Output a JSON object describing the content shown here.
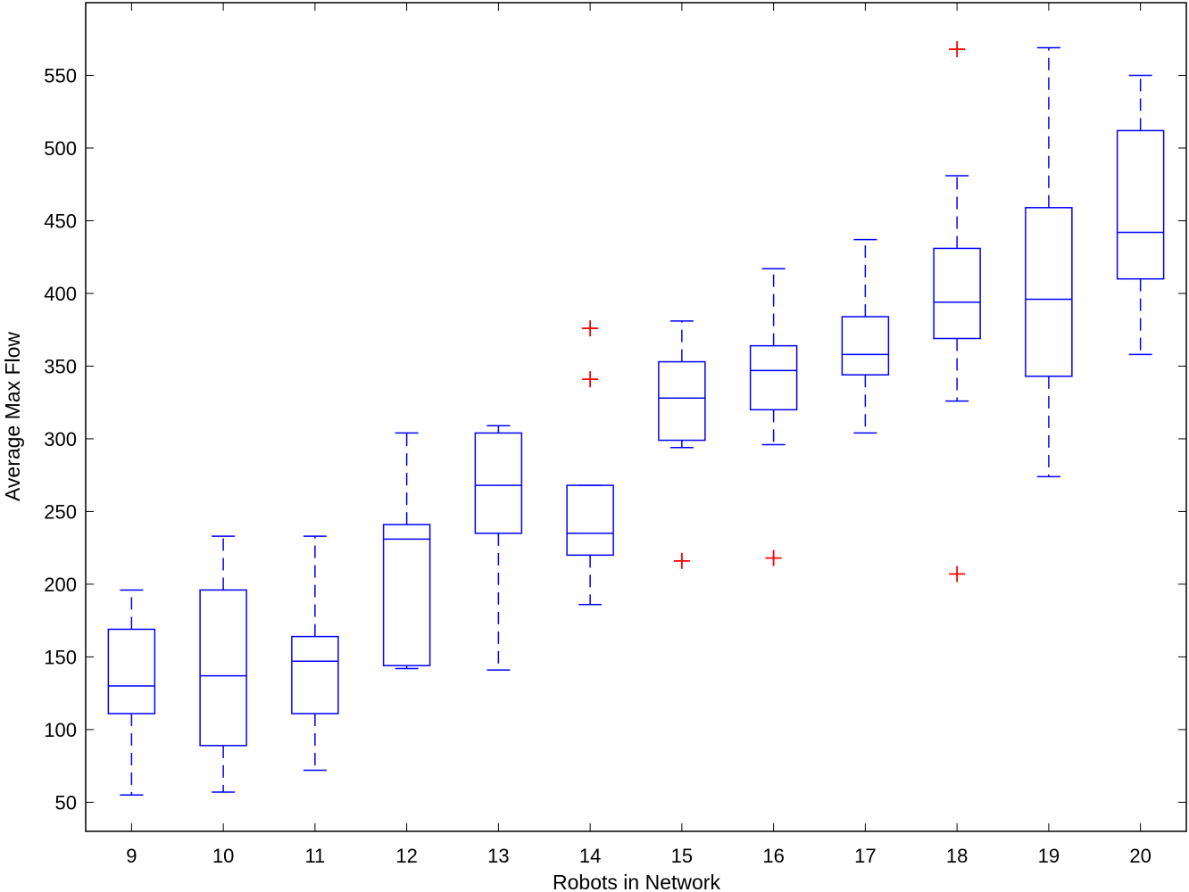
{
  "chart_data": {
    "type": "boxplot",
    "title": "",
    "xlabel": "Robots in Network",
    "ylabel": "Average Max Flow",
    "categories": [
      "9",
      "10",
      "11",
      "12",
      "13",
      "14",
      "15",
      "16",
      "17",
      "18",
      "19",
      "20"
    ],
    "xlim": [
      8.5,
      20.5
    ],
    "ylim": [
      30,
      600
    ],
    "yticks": [
      50,
      100,
      150,
      200,
      250,
      300,
      350,
      400,
      450,
      500,
      550
    ],
    "grid": false,
    "box_color": "#0000ff",
    "outlier_color": "#ff0000",
    "boxes": [
      {
        "x": 9,
        "min": 55,
        "q1": 111,
        "median": 130,
        "q3": 169,
        "max": 196,
        "outliers": []
      },
      {
        "x": 10,
        "min": 57,
        "q1": 89,
        "median": 137,
        "q3": 196,
        "max": 233,
        "outliers": []
      },
      {
        "x": 11,
        "min": 72,
        "q1": 111,
        "median": 147,
        "q3": 164,
        "max": 233,
        "outliers": []
      },
      {
        "x": 12,
        "min": 142,
        "q1": 144,
        "median": 231,
        "q3": 241,
        "max": 304,
        "outliers": []
      },
      {
        "x": 13,
        "min": 141,
        "q1": 235,
        "median": 268,
        "q3": 304,
        "max": 309,
        "outliers": []
      },
      {
        "x": 14,
        "min": 186,
        "q1": 220,
        "median": 235,
        "q3": 268,
        "max": 268,
        "outliers": [
          341,
          376
        ]
      },
      {
        "x": 15,
        "min": 294,
        "q1": 299,
        "median": 328,
        "q3": 353,
        "max": 381,
        "outliers": [
          216
        ]
      },
      {
        "x": 16,
        "min": 296,
        "q1": 320,
        "median": 347,
        "q3": 364,
        "max": 417,
        "outliers": [
          218
        ]
      },
      {
        "x": 17,
        "min": 304,
        "q1": 344,
        "median": 358,
        "q3": 384,
        "max": 437,
        "outliers": []
      },
      {
        "x": 18,
        "min": 326,
        "q1": 369,
        "median": 394,
        "q3": 431,
        "max": 481,
        "outliers": [
          207,
          568
        ]
      },
      {
        "x": 19,
        "min": 274,
        "q1": 343,
        "median": 396,
        "q3": 459,
        "max": 569,
        "outliers": []
      },
      {
        "x": 20,
        "min": 358,
        "q1": 410,
        "median": 442,
        "q3": 512,
        "max": 550,
        "outliers": []
      }
    ]
  }
}
